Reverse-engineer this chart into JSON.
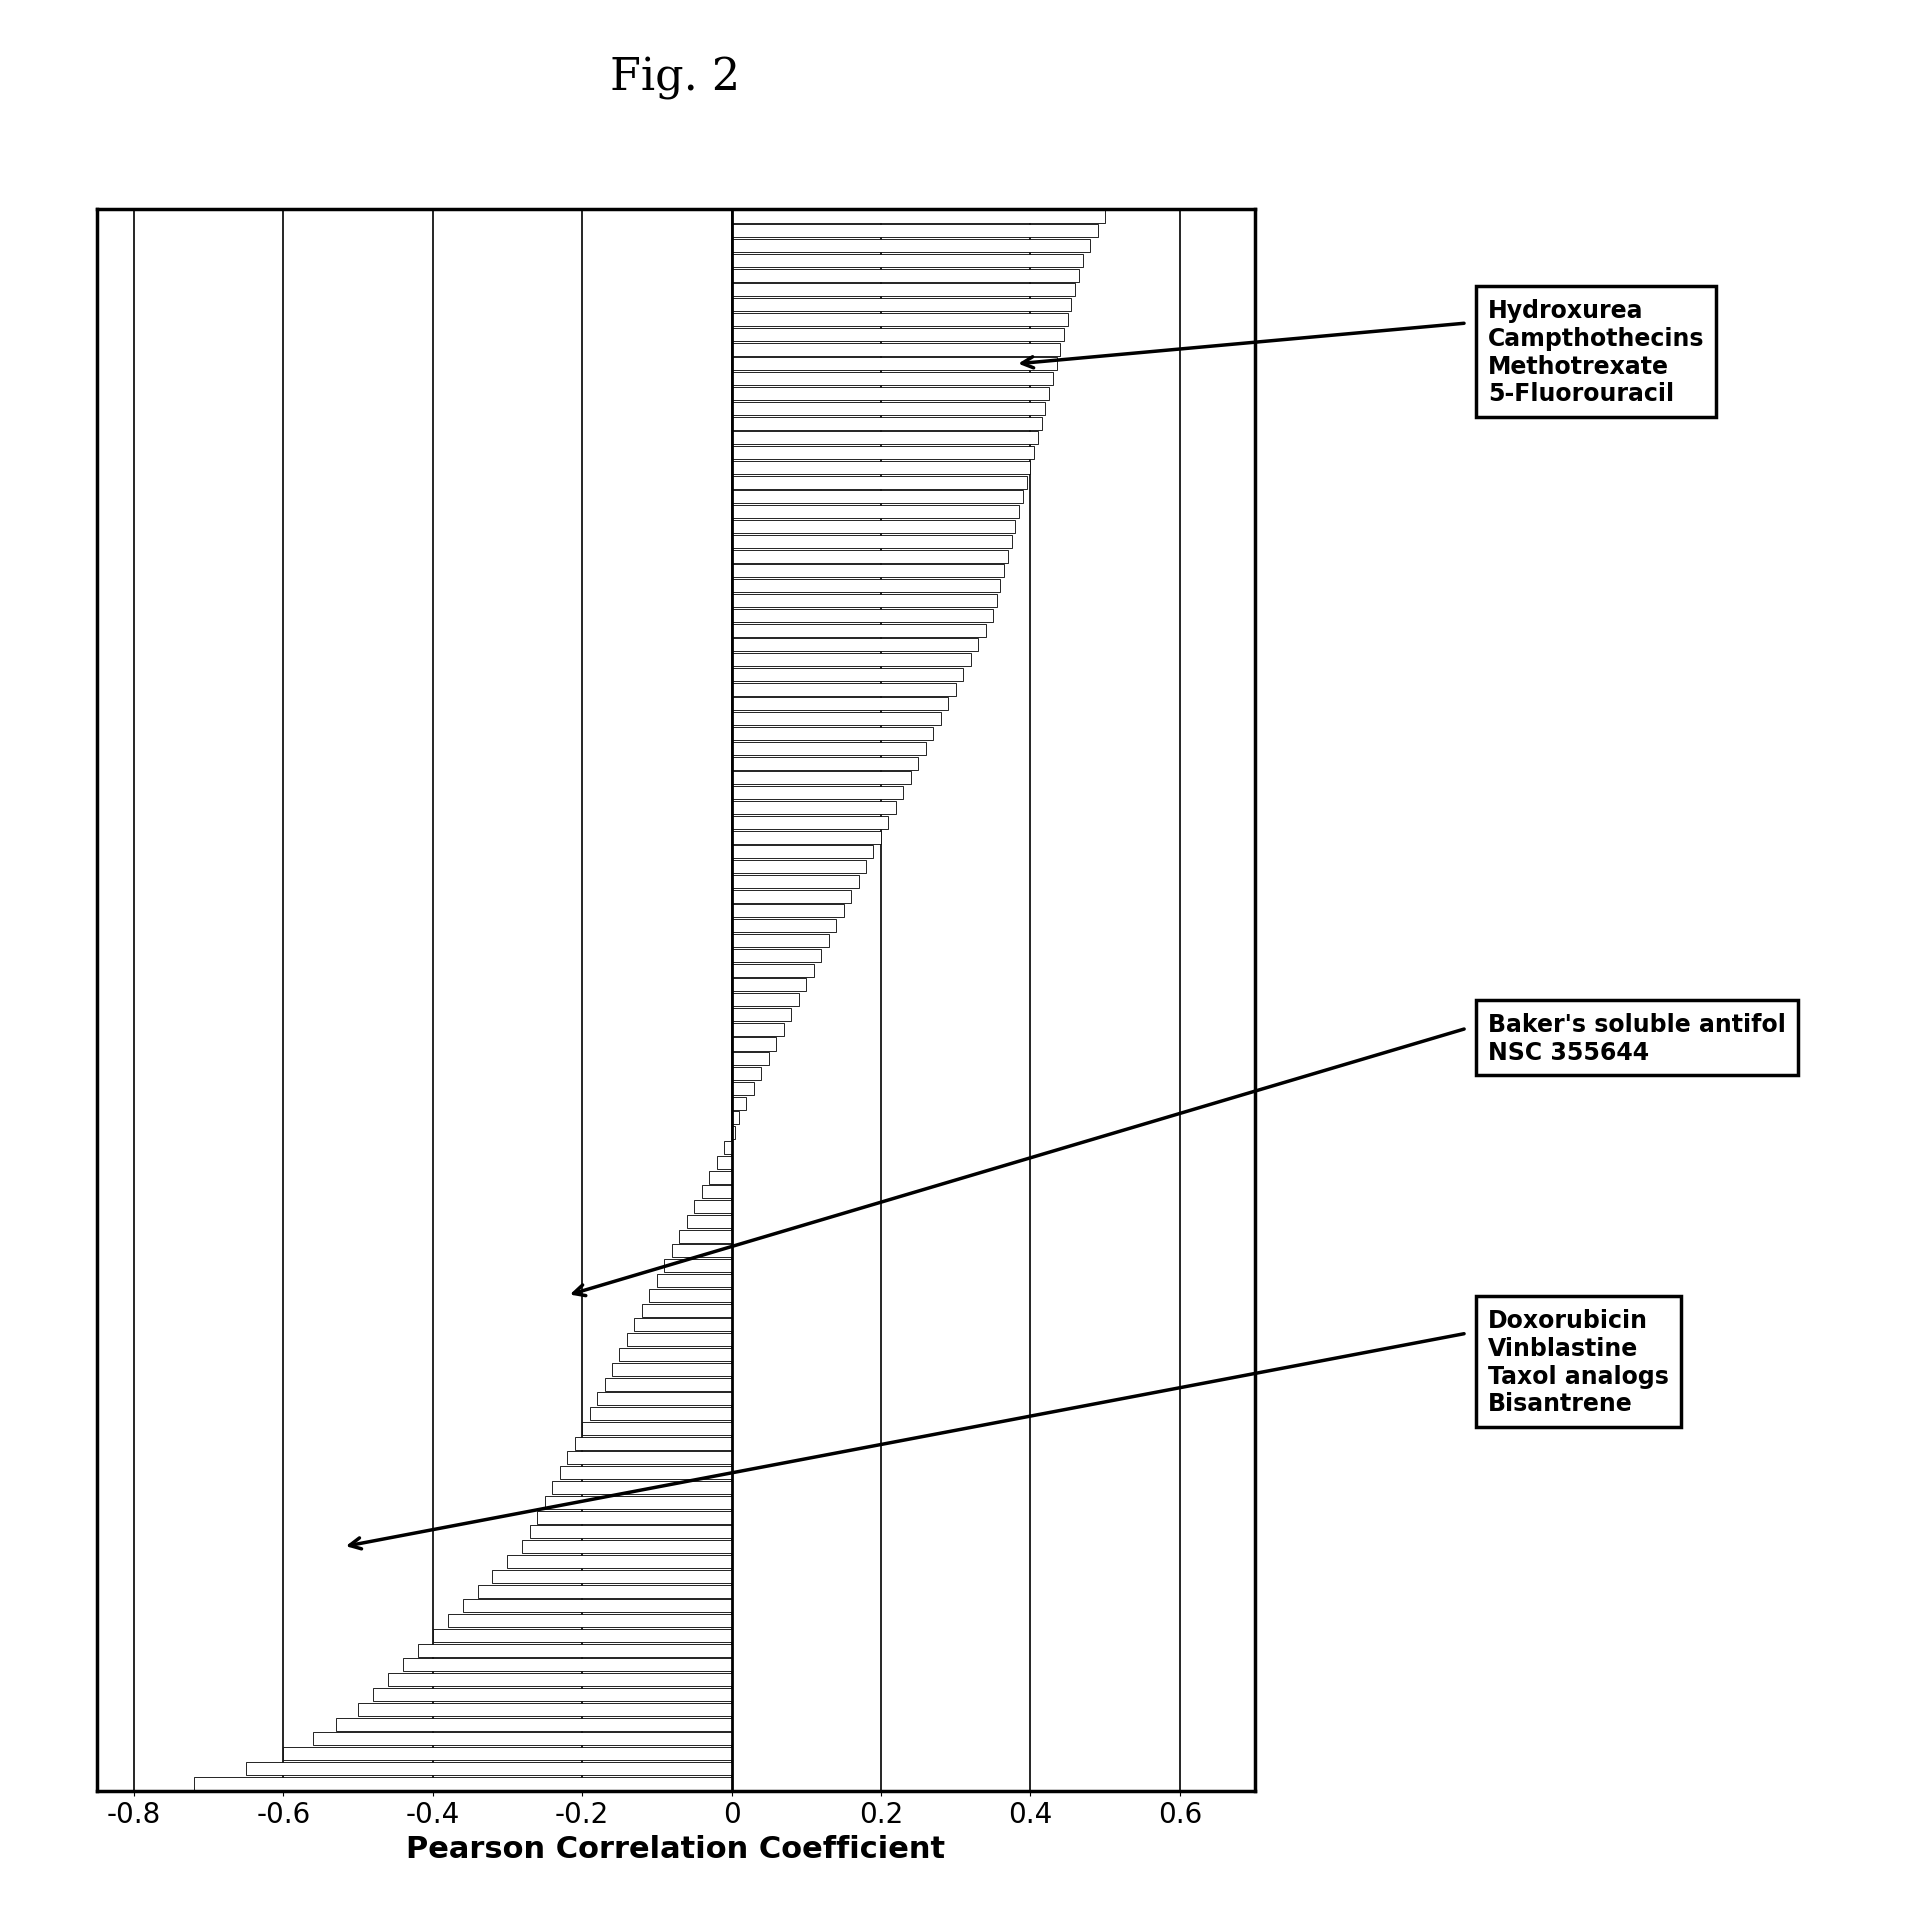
{
  "title": "Fig. 2",
  "xlabel": "Pearson Correlation Coefficient",
  "xlim": [
    -0.85,
    0.7
  ],
  "xticks": [
    -0.8,
    -0.6,
    -0.4,
    -0.2,
    0.0,
    0.2,
    0.4,
    0.6
  ],
  "xtick_labels": [
    "-0.8",
    "-0.6",
    "-0.4",
    "-0.2",
    "0",
    "0.2",
    "0.4",
    "0.6"
  ],
  "annotation1_text": "Hydroxurea\nCampthothecins\nMethotrexate\n5-Fluorouracil",
  "annotation2_text": "Baker's soluble antifol\nNSC 355644",
  "annotation3_text": "Doxorubicin\nVinblastine\nTaxol analogs\nBisantrene",
  "bar_values": [
    0.5,
    0.49,
    0.48,
    0.47,
    0.465,
    0.46,
    0.455,
    0.45,
    0.445,
    0.44,
    0.435,
    0.43,
    0.425,
    0.42,
    0.415,
    0.41,
    0.405,
    0.4,
    0.395,
    0.39,
    0.385,
    0.38,
    0.375,
    0.37,
    0.365,
    0.36,
    0.355,
    0.35,
    0.34,
    0.33,
    0.32,
    0.31,
    0.3,
    0.29,
    0.28,
    0.27,
    0.26,
    0.25,
    0.24,
    0.23,
    0.22,
    0.21,
    0.2,
    0.19,
    0.18,
    0.17,
    0.16,
    0.15,
    0.14,
    0.13,
    0.12,
    0.11,
    0.1,
    0.09,
    0.08,
    0.07,
    0.06,
    0.05,
    0.04,
    0.03,
    0.02,
    0.01,
    0.005,
    -0.01,
    -0.02,
    -0.03,
    -0.04,
    -0.05,
    -0.06,
    -0.07,
    -0.08,
    -0.09,
    -0.1,
    -0.11,
    -0.12,
    -0.13,
    -0.14,
    -0.15,
    -0.16,
    -0.17,
    -0.18,
    -0.19,
    -0.2,
    -0.21,
    -0.22,
    -0.23,
    -0.24,
    -0.25,
    -0.26,
    -0.27,
    -0.28,
    -0.3,
    -0.32,
    -0.34,
    -0.36,
    -0.38,
    -0.4,
    -0.42,
    -0.44,
    -0.46,
    -0.48,
    -0.5,
    -0.53,
    -0.56,
    -0.6,
    -0.65,
    -0.72
  ],
  "fig_width": 19.3,
  "fig_height": 19.06
}
